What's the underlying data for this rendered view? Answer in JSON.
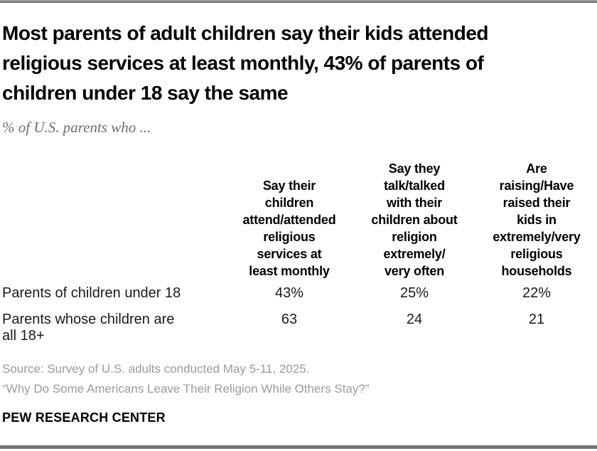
{
  "header": {
    "title": "Most parents of adult children say their kids attended\nreligious services at least monthly, 43% of parents of\nchildren under 18 say the same",
    "subtitle": "% of U.S. parents who ..."
  },
  "table": {
    "columns": [
      {
        "header": "Say their\nchildren\nattend/attended\nreligious\nservices at\nleast monthly"
      },
      {
        "header": "Say they\ntalk/talked\nwith their\nchildren about\nreligion\nextremely/\nvery often"
      },
      {
        "header": "Are\nraising/Have\nraised their\nkids in\nextremely/very\nreligious\nhouseholds"
      }
    ],
    "rows": [
      {
        "label": "Parents of children under 18",
        "values": [
          "43%",
          "25%",
          "22%"
        ]
      },
      {
        "label": "Parents whose children are\nall 18+",
        "values": [
          "63",
          "24",
          "21"
        ]
      }
    ]
  },
  "footer": {
    "source": "Source: Survey of U.S. adults conducted May 5-11, 2025.",
    "quote": "“Why Do Some Americans Leave Their Religion While Others Stay?”",
    "brand": "PEW RESEARCH CENTER"
  },
  "colors": {
    "title_black": "#000000",
    "subtitle_gray": "#716c66",
    "source_gray": "#9b9b9b",
    "divider_gray": "#9c9c9c"
  },
  "chart_data": {
    "type": "table",
    "title": "Most parents of adult children say their kids attended religious services at least monthly, 43% of parents of children under 18 say the same",
    "subtitle": "% of U.S. parents who ...",
    "units": "%",
    "columns": [
      "Say their children attend/attended religious services at least monthly",
      "Say they talk/talked with their children about religion extremely/very often",
      "Are raising/Have raised their kids in extremely/very religious households"
    ],
    "rows": [
      {
        "label": "Parents of children under 18",
        "values": [
          43,
          25,
          22
        ]
      },
      {
        "label": "Parents whose children are all 18+",
        "values": [
          63,
          24,
          21
        ]
      }
    ],
    "source": "Source: Survey of U.S. adults conducted May 5-11, 2025.",
    "note": "“Why Do Some Americans Leave Their Religion While Others Stay?”",
    "brand": "PEW RESEARCH CENTER"
  }
}
